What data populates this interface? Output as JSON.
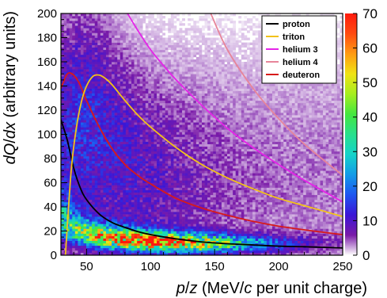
{
  "chart_data": {
    "type": "heatmap",
    "title": "",
    "xlabel_parts": [
      {
        "text": "p",
        "italic": true
      },
      {
        "text": "/",
        "italic": false
      },
      {
        "text": "z",
        "italic": true
      },
      {
        "text": " (MeV/",
        "italic": false
      },
      {
        "text": "c",
        "italic": true
      },
      {
        "text": " per unit charge)",
        "italic": false
      }
    ],
    "ylabel_parts": [
      {
        "text": "dQ",
        "italic": true
      },
      {
        "text": "/",
        "italic": false
      },
      {
        "text": "dx",
        "italic": true
      },
      {
        "text": " (arbitrary units)",
        "italic": false
      }
    ],
    "xlim": [
      30,
      250
    ],
    "ylim": [
      0,
      200
    ],
    "x_ticks": [
      50,
      100,
      150,
      200,
      250
    ],
    "y_ticks": [
      0,
      20,
      40,
      60,
      80,
      100,
      120,
      140,
      160,
      180,
      200
    ],
    "colorbar": {
      "range": [
        0,
        70
      ],
      "ticks": [
        0,
        10,
        20,
        30,
        40,
        50,
        60,
        70
      ],
      "palette": [
        "#ffffff",
        "#7a1aa8",
        "#3b16d6",
        "#1e56f0",
        "#139be8",
        "#14d3c9",
        "#28e08d",
        "#44e73f",
        "#a6ee1f",
        "#f0e314",
        "#ff9b12",
        "#ff4a10",
        "#ff1a0d"
      ]
    },
    "legend": {
      "placement": "top-right",
      "entries": [
        {
          "name": "proton",
          "color": "#000000"
        },
        {
          "name": "triton",
          "color": "#f2c21a"
        },
        {
          "name": "helium 3",
          "color": "#e524e8"
        },
        {
          "name": "helium 4",
          "color": "#e7859a"
        },
        {
          "name": "deuteron",
          "color": "#d71a1a"
        }
      ]
    },
    "series": [
      {
        "name": "proton",
        "color": "#000000",
        "x": [
          30,
          35,
          40,
          45,
          50,
          60,
          70,
          80,
          90,
          100,
          120,
          140,
          160,
          180,
          200,
          220,
          250
        ],
        "y": [
          112,
          95,
          72,
          56,
          46,
          34,
          27,
          23,
          19.5,
          17,
          13.5,
          11,
          9.5,
          8.5,
          7.5,
          7,
          6
        ]
      },
      {
        "name": "deuteron",
        "color": "#d71a1a",
        "x": [
          30,
          35,
          40,
          45,
          50,
          60,
          70,
          80,
          90,
          100,
          120,
          140,
          160,
          180,
          200,
          220,
          250
        ],
        "y": [
          138,
          150,
          149,
          141,
          128,
          106,
          88,
          75,
          66,
          59,
          47,
          39,
          33,
          28,
          24,
          21,
          17
        ]
      },
      {
        "name": "triton",
        "color": "#f2c21a",
        "x": [
          33.5,
          38,
          42,
          46,
          50,
          55,
          60,
          65,
          70,
          80,
          90,
          100,
          120,
          140,
          160,
          180,
          200,
          220,
          250
        ],
        "y": [
          0,
          70,
          105,
          127,
          140,
          148,
          149,
          146,
          141,
          128,
          116,
          106,
          89,
          75,
          64,
          55,
          47,
          41,
          32
        ]
      },
      {
        "name": "helium 3",
        "color": "#e524e8",
        "x": [
          82,
          90,
          100,
          110,
          120,
          140,
          160,
          180,
          200,
          220,
          250
        ],
        "y": [
          200,
          186,
          170,
          157,
          145,
          124,
          105,
          89,
          75,
          62,
          44
        ]
      },
      {
        "name": "helium 4",
        "color": "#e7859a",
        "x": [
          147,
          160,
          180,
          200,
          220,
          250
        ],
        "y": [
          200,
          170,
          138,
          113,
          92,
          66
        ]
      }
    ]
  }
}
